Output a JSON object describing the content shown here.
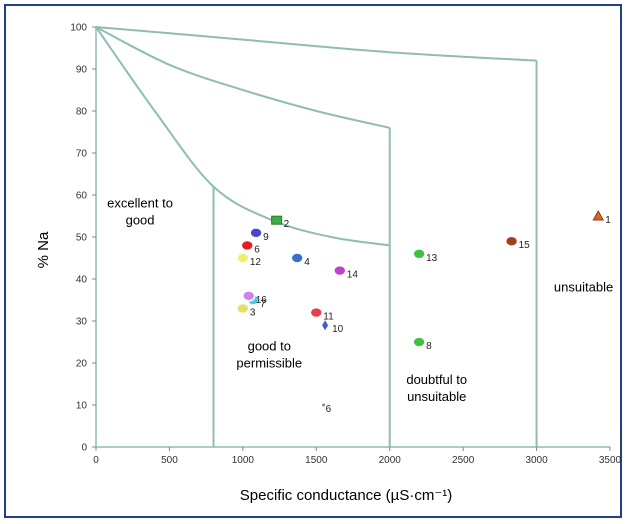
{
  "chart_data": {
    "type": "scatter",
    "title": "",
    "xlabel": "Specific conductance (µS·cm⁻¹)",
    "ylabel": "% Na",
    "xlim": [
      0,
      3500
    ],
    "ylim": [
      0,
      100
    ],
    "x_ticks": [
      0,
      500,
      1000,
      1500,
      2000,
      2500,
      3000,
      3500
    ],
    "y_ticks": [
      0,
      10,
      20,
      30,
      40,
      50,
      60,
      70,
      80,
      90,
      100
    ],
    "grid": false,
    "regions": [
      {
        "name": "excellent to good",
        "lines": [
          "excellent to",
          "good"
        ],
        "x": 300,
        "y": 57
      },
      {
        "name": "good to permissible",
        "lines": [
          "good to",
          "permissible"
        ],
        "x": 1180,
        "y": 23
      },
      {
        "name": "doubtful to unsuitable",
        "lines": [
          "doubtful to",
          "unsuitable"
        ],
        "x": 2320,
        "y": 15
      },
      {
        "name": "unsuitable",
        "lines": [
          "unsuitable"
        ],
        "x": 3320,
        "y": 37
      }
    ],
    "boundary_curves": [
      {
        "name": "excellent-good boundary",
        "points": [
          [
            0,
            100
          ],
          [
            400,
            80
          ],
          [
            800,
            62
          ],
          [
            1200,
            54
          ],
          [
            1600,
            50
          ],
          [
            2000,
            48
          ]
        ]
      },
      {
        "name": "good-permissible boundary",
        "points": [
          [
            0,
            100
          ],
          [
            500,
            91
          ],
          [
            1000,
            85
          ],
          [
            1500,
            80
          ],
          [
            2000,
            76
          ]
        ]
      },
      {
        "name": "permissible-doubtful boundary",
        "points": [
          [
            0,
            100
          ],
          [
            1000,
            97
          ],
          [
            2000,
            94
          ],
          [
            3000,
            92
          ]
        ]
      },
      {
        "name": "vertical 800",
        "points": [
          [
            800,
            62
          ],
          [
            800,
            0
          ]
        ]
      },
      {
        "name": "vertical 2000",
        "points": [
          [
            2000,
            76
          ],
          [
            2000,
            0
          ]
        ]
      },
      {
        "name": "vertical 3000",
        "points": [
          [
            3000,
            92
          ],
          [
            3000,
            0
          ]
        ]
      }
    ],
    "points": [
      {
        "label": "1",
        "x": 3420,
        "y": 55,
        "color": "#d2691e",
        "shape": "triangle"
      },
      {
        "label": "2",
        "x": 1230,
        "y": 54,
        "color": "#3cb043",
        "shape": "square"
      },
      {
        "label": "3",
        "x": 1000,
        "y": 33,
        "color": "#e8e060",
        "shape": "circle"
      },
      {
        "label": "4",
        "x": 1370,
        "y": 45,
        "color": "#3a6fd0",
        "shape": "circle"
      },
      {
        "label": "6",
        "x": 1030,
        "y": 48,
        "color": "#e02020",
        "shape": "circle"
      },
      {
        "label": "7",
        "x": 1070,
        "y": 35,
        "color": "#40d0f0",
        "shape": "circle"
      },
      {
        "label": "8",
        "x": 2200,
        "y": 25,
        "color": "#40c040",
        "shape": "circle"
      },
      {
        "label": "9",
        "x": 1090,
        "y": 51,
        "color": "#4848c8",
        "shape": "circle"
      },
      {
        "label": "10",
        "x": 1560,
        "y": 29,
        "color": "#3b5fc8",
        "shape": "diamond"
      },
      {
        "label": "11",
        "x": 1500,
        "y": 32,
        "color": "#e04050",
        "shape": "circle"
      },
      {
        "label": "12",
        "x": 1000,
        "y": 45,
        "color": "#f0f070",
        "shape": "circle"
      },
      {
        "label": "13",
        "x": 2200,
        "y": 46,
        "color": "#40c040",
        "shape": "circle"
      },
      {
        "label": "14",
        "x": 1660,
        "y": 42,
        "color": "#c040d0",
        "shape": "circle"
      },
      {
        "label": "15",
        "x": 2830,
        "y": 49,
        "color": "#a04020",
        "shape": "circle"
      },
      {
        "label": "16",
        "x": 1040,
        "y": 36,
        "color": "#d080f0",
        "shape": "circle"
      },
      {
        "label": "6",
        "x": 1550,
        "y": 10,
        "color": "#8a8a8a",
        "shape": "dot"
      }
    ],
    "colors": {
      "boundary": "#8fbcb5",
      "frame": "#223f8f",
      "axis": "#8fbcb5"
    }
  }
}
